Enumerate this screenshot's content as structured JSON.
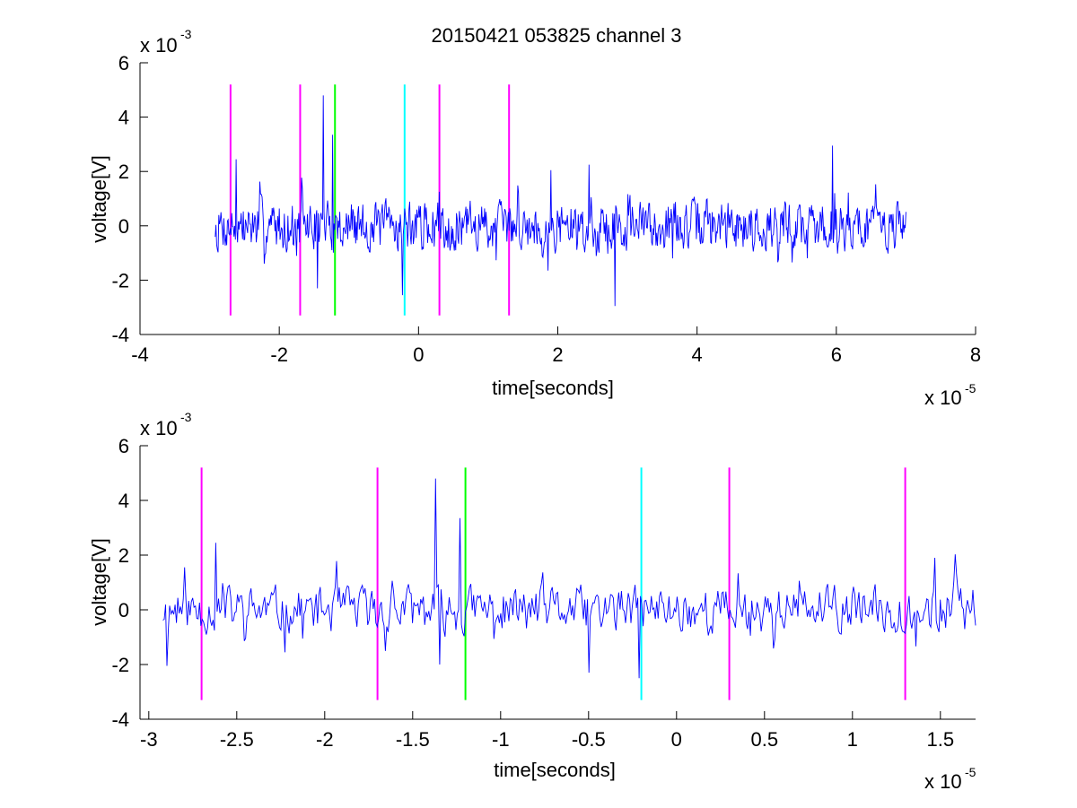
{
  "chart_data": [
    {
      "type": "line",
      "title": "20150421 053825 channel 3",
      "xlabel": "time[seconds]",
      "ylabel": "voltage[V]",
      "x_exponent_label": "x 10",
      "x_exponent": "-5",
      "y_exponent_label": "x 10",
      "y_exponent": "-3",
      "xlim": [
        -4,
        8
      ],
      "ylim": [
        -4,
        6
      ],
      "x_unit_scale": 1e-05,
      "y_unit_scale": 0.001,
      "x_ticks": [
        -4,
        -2,
        0,
        2,
        4,
        6,
        8
      ],
      "x_tick_labels": [
        "-4",
        "-2",
        "0",
        "2",
        "4",
        "6",
        "8"
      ],
      "y_ticks": [
        -4,
        -2,
        0,
        2,
        4,
        6
      ],
      "y_tick_labels": [
        "-4",
        "-2",
        "0",
        "2",
        "4",
        "6"
      ],
      "grid": false,
      "series": [
        {
          "color": "#0000ff",
          "signal": {
            "x_start": -2.92,
            "x_end": 7.0,
            "points": 960,
            "mean": 0.0,
            "amplitude": 0.75,
            "seed": 7
          },
          "spikes": [
            {
              "x": -1.37,
              "y": 4.8
            },
            {
              "x": -1.23,
              "y": 3.35
            },
            {
              "x": 5.95,
              "y": 2.95
            },
            {
              "x": -2.62,
              "y": 2.45
            },
            {
              "x": 2.82,
              "y": -2.95
            },
            {
              "x": 2.45,
              "y": 2.25
            },
            {
              "x": -1.45,
              "y": -2.3
            },
            {
              "x": -0.23,
              "y": -2.55
            },
            {
              "x": 1.9,
              "y": 2.05
            }
          ]
        }
      ],
      "vlines": [
        {
          "x": -2.7,
          "y0": -3.3,
          "y1": 5.2,
          "color": "#ff00ff"
        },
        {
          "x": -1.7,
          "y0": -3.3,
          "y1": 5.2,
          "color": "#ff00ff"
        },
        {
          "x": -1.2,
          "y0": -3.3,
          "y1": 5.2,
          "color": "#00ff00"
        },
        {
          "x": -0.2,
          "y0": -3.3,
          "y1": 5.2,
          "color": "#00ffff"
        },
        {
          "x": 0.3,
          "y0": -3.3,
          "y1": 5.2,
          "color": "#ff00ff"
        },
        {
          "x": 1.3,
          "y0": -3.3,
          "y1": 5.2,
          "color": "#ff00ff"
        }
      ]
    },
    {
      "type": "line",
      "title": "",
      "xlabel": "time[seconds]",
      "ylabel": "voltage[V]",
      "x_exponent_label": "x 10",
      "x_exponent": "-5",
      "y_exponent_label": "x 10",
      "y_exponent": "-3",
      "xlim": [
        -3.05,
        1.7
      ],
      "ylim": [
        -4,
        6
      ],
      "x_unit_scale": 1e-05,
      "y_unit_scale": 0.001,
      "x_ticks": [
        -3,
        -2.5,
        -2,
        -1.5,
        -1,
        -0.5,
        0,
        0.5,
        1,
        1.5
      ],
      "x_tick_labels": [
        "-3",
        "-2.5",
        "-2",
        "-1.5",
        "-1",
        "-0.5",
        "0",
        "0.5",
        "1",
        "1.5"
      ],
      "y_ticks": [
        -4,
        -2,
        0,
        2,
        4,
        6
      ],
      "y_tick_labels": [
        "-4",
        "-2",
        "0",
        "2",
        "4",
        "6"
      ],
      "grid": false,
      "series": [
        {
          "color": "#0000ff",
          "signal": {
            "x_start": -2.92,
            "x_end": 1.7,
            "points": 600,
            "mean": 0.0,
            "amplitude": 0.7,
            "seed": 11
          },
          "spikes": [
            {
              "x": -1.37,
              "y": 4.8
            },
            {
              "x": -1.23,
              "y": 3.35
            },
            {
              "x": -2.62,
              "y": 2.45
            },
            {
              "x": -2.9,
              "y": -2.05
            },
            {
              "x": -1.35,
              "y": -2.0
            },
            {
              "x": -0.21,
              "y": -2.5
            },
            {
              "x": 1.47,
              "y": 1.9
            },
            {
              "x": -0.5,
              "y": -2.3
            }
          ]
        }
      ],
      "vlines": [
        {
          "x": -2.7,
          "y0": -3.3,
          "y1": 5.2,
          "color": "#ff00ff"
        },
        {
          "x": -1.7,
          "y0": -3.3,
          "y1": 5.2,
          "color": "#ff00ff"
        },
        {
          "x": -1.2,
          "y0": -3.3,
          "y1": 5.2,
          "color": "#00ff00"
        },
        {
          "x": -0.2,
          "y0": -3.3,
          "y1": 5.2,
          "color": "#00ffff"
        },
        {
          "x": 0.3,
          "y0": -3.3,
          "y1": 5.2,
          "color": "#ff00ff"
        },
        {
          "x": 1.3,
          "y0": -3.3,
          "y1": 5.2,
          "color": "#ff00ff"
        }
      ]
    }
  ]
}
